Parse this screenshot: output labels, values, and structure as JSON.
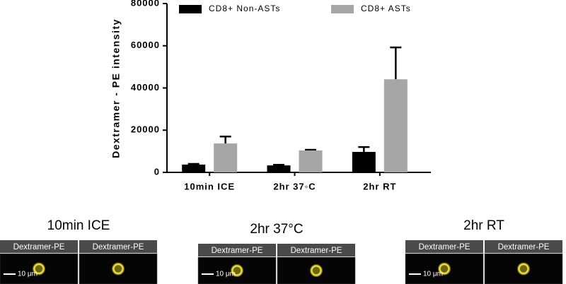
{
  "chart_data": {
    "type": "bar",
    "y_label": "Dextramer - PE intensity",
    "categories": [
      "10min ICE",
      "2hr 37◦C",
      "2hr RT"
    ],
    "series": [
      {
        "name": "CD8+ Non-ASTs",
        "color": "#000000",
        "values": [
          3700,
          3300,
          9700
        ],
        "errors": [
          300,
          300,
          2300
        ]
      },
      {
        "name": "CD8+ ASTs",
        "color": "#a6a6a6",
        "values": [
          13700,
          10400,
          44100
        ],
        "errors": [
          3300,
          300,
          15100
        ]
      }
    ],
    "ylim": [
      0,
      80000
    ],
    "yticks": [
      0,
      20000,
      40000,
      60000,
      80000
    ],
    "legend": "top"
  },
  "panels": [
    {
      "title": "10min ICE",
      "labels": [
        "Dextramer-PE",
        "Dextramer-PE"
      ],
      "scale": "10 μm"
    },
    {
      "title": "2hr 37°C",
      "labels": [
        "Dextramer-PE",
        "Dextramer-PE"
      ],
      "scale": "10 μm"
    },
    {
      "title": "2hr RT",
      "labels": [
        "Dextramer-PE",
        "Dextramer-PE"
      ],
      "scale": "10 μm"
    }
  ]
}
